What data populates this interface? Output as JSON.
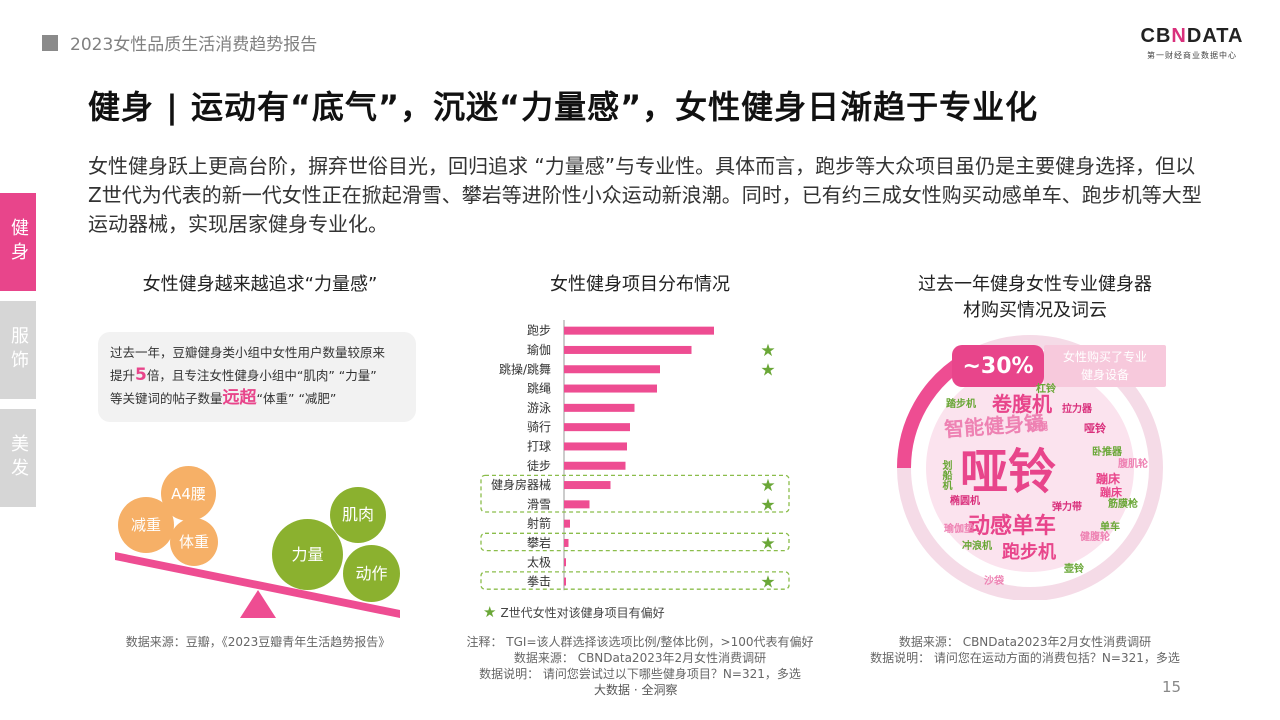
{
  "header": {
    "report_title": "2023女性品质生活消费趋势报告"
  },
  "logo": {
    "brand_prefix": "CB",
    "brand_x": "N",
    "brand_suffix": "DATA",
    "tagline": "第一财经商业数据中心"
  },
  "page_title": "健身 | 运动有“底气”，沉迷“力量感”，女性健身日渐趋于专业化",
  "intro": "女性健身跃上更高台阶，摒弃世俗目光，回归追求 “力量感”与专业性。具体而言，跑步等大众项目虽仍是主要健身选择，但以Z世代为代表的新一代女性正在掀起滑雪、攀岩等进阶性小众运动新浪潮。同时，已有约三成女性购买动感单车、跑步机等大型运动器械，实现居家健身专业化。",
  "side_tabs": [
    "健身",
    "服饰",
    "美发"
  ],
  "left_panel": {
    "title": "女性健身越来越追求“力量感”",
    "quote": {
      "line1": "过去一年，豆瓣健身类小组中女性用户数量较原来",
      "line2_a": "提升",
      "line2_em": "5",
      "line2_b": "倍，且专注女性健身小组中“肌肉” “力量”",
      "line3_a": "等关键词的帖子数量",
      "line3_em": "远超",
      "line3_b": "“体重” “减肥”"
    },
    "circles": {
      "a4_waist": "A4腰",
      "weight_loss": "减重",
      "body_weight": "体重",
      "power": "力量",
      "muscle": "肌肉",
      "movement": "动作"
    },
    "source": "数据来源：豆瓣，《2023豆瓣青年生活趋势报告》"
  },
  "middle_panel": {
    "title": "女性健身项目分布情况",
    "legend": "Z世代女性对该健身项目有偏好",
    "note_line1": "注释： TGI=该人群选择该选项比例/整体比例，>100代表有偏好",
    "note_line2": "数据来源： CBNData2023年2月女性消费调研",
    "note_line3": "数据说明： 请问您尝试过以下哪些健身项目？N=321，多选"
  },
  "chart_data": {
    "type": "bar",
    "orientation": "horizontal",
    "categories": [
      "跑步",
      "瑜伽",
      "跳操/跳舞",
      "跳绳",
      "游泳",
      "骑行",
      "打球",
      "徒步",
      "健身房器械",
      "滑雪",
      "射箭",
      "攀岩",
      "太极",
      "拳击"
    ],
    "values": [
      100,
      85,
      64,
      62,
      47,
      44,
      42,
      41,
      31,
      17,
      4,
      3,
      1,
      1
    ],
    "z_gen_preference": [
      false,
      true,
      true,
      false,
      false,
      false,
      false,
      false,
      true,
      true,
      false,
      true,
      false,
      true
    ],
    "axis_labels_shown": false,
    "colors": {
      "bar": "#ee4d92",
      "star": "#6aa737",
      "dashed_box": "#8bbd4b"
    }
  },
  "right_panel": {
    "title_line1": "过去一年健身女性专业健身器",
    "title_line2": "材购买情况及词云",
    "percent": "~30%",
    "percent_note_line1": "女性购买了专业",
    "percent_note_line2": "健身设备",
    "word_cloud": [
      "哑铃",
      "动感单车",
      "智能健身镜",
      "卷腹机",
      "跑步机",
      "蹦床",
      "哑铃",
      "卧推器",
      "冲浪机",
      "划船机",
      "筋膜枪",
      "椭圆机",
      "拉力器",
      "单车",
      "健腹轮",
      "瑜伽垫",
      "弹力带",
      "踏步机",
      "蹦床",
      "跳绳",
      "壶铃",
      "沙袋",
      "杠铃",
      "腹肌轮"
    ],
    "source_line1": "数据来源： CBNData2023年2月女性消费调研",
    "source_line2": "数据说明： 请问您在运动方面的消费包括？N=321，多选"
  },
  "footer": {
    "brand": "大数据 · 全洞察",
    "page_number": "15"
  },
  "colors": {
    "accent_pink": "#e8458b",
    "orange": "#f6b067",
    "green": "#8bb12f",
    "light_pink": "#f7c9dc"
  }
}
